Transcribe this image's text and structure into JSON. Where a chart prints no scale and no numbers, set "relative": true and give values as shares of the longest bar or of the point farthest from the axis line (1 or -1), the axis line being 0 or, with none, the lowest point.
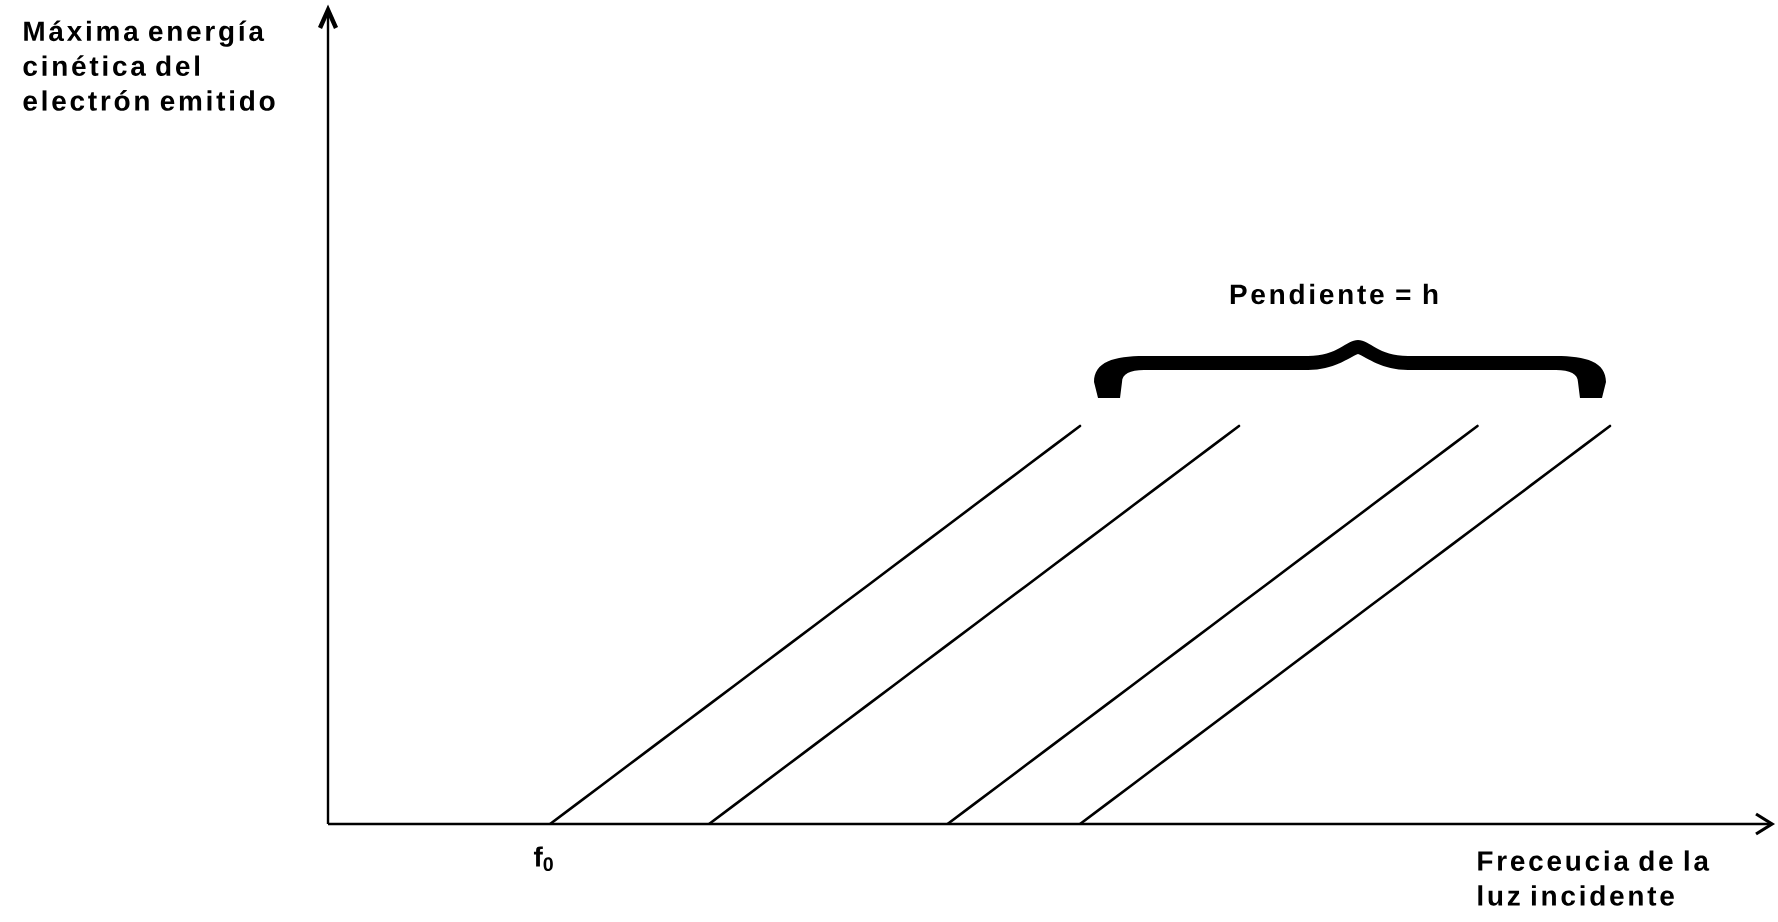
{
  "chart_data": {
    "type": "line",
    "relative": true,
    "marker": "none",
    "line_style": "solid",
    "xlabel": "Freceucia de la luz incidente",
    "annotations": [
      "Máxima energía cinética del electrón emitido",
      "Pendiente = h",
      {
        "text": "f$_{0}$",
        "y": 0
      }
    ],
    "categories": [
      null,
      null,
      null,
      null,
      null,
      null,
      null,
      null,
      null,
      null,
      null,
      null,
      null,
      null,
      null,
      null,
      null,
      null,
      null,
      null,
      null,
      null,
      null,
      null,
      null,
      null,
      null,
      null,
      null,
      null,
      null,
      null,
      null,
      null,
      null,
      null,
      null,
      null,
      null,
      null,
      null
    ],
    "series": [
      {
        "color": "#000000",
        "values": [
          0,
          0.05,
          0.1,
          0.15,
          0.2,
          0.25,
          0.3,
          0.35,
          0.4,
          0.45,
          0.5,
          0.55,
          0.6,
          0.65,
          0.7,
          0.75,
          0.8,
          0.85,
          0.9,
          0.95,
          1,
          null,
          null,
          null,
          null,
          null,
          null,
          null,
          null,
          null,
          null,
          null,
          null,
          null,
          null,
          null,
          null,
          null,
          null,
          null,
          null
        ]
      },
      {
        "color": "#000000",
        "values": [
          null,
          null,
          null,
          null,
          null,
          null,
          0,
          0.05,
          0.1,
          0.15,
          0.2,
          0.25,
          0.3,
          0.35,
          0.4,
          0.45,
          0.5,
          0.55,
          0.6,
          0.65,
          0.7,
          0.75,
          0.8,
          0.85,
          0.9,
          0.95,
          1,
          null,
          null,
          null,
          null,
          null,
          null,
          null,
          null,
          null,
          null,
          null,
          null,
          null,
          null
        ]
      },
      {
        "color": "#000000",
        "values": [
          null,
          null,
          null,
          null,
          null,
          null,
          null,
          null,
          null,
          null,
          null,
          null,
          null,
          null,
          null,
          0,
          0.05,
          0.1,
          0.15,
          0.2,
          0.25,
          0.3,
          0.35,
          0.4,
          0.45,
          0.5,
          0.55,
          0.6,
          0.65,
          0.7,
          0.75,
          0.8,
          0.85,
          0.9,
          0.95,
          1,
          null,
          null,
          null,
          null,
          null
        ]
      },
      {
        "color": "#000000",
        "values": [
          null,
          null,
          null,
          null,
          null,
          null,
          null,
          null,
          null,
          null,
          null,
          null,
          null,
          null,
          null,
          null,
          null,
          null,
          null,
          null,
          0,
          0.05,
          0.1,
          0.15,
          0.2,
          0.25,
          0.3,
          0.35,
          0.4,
          0.45,
          0.5,
          0.55,
          0.6,
          0.65,
          0.7,
          0.75,
          0.8,
          0.85,
          0.9,
          0.95,
          1
        ]
      }
    ]
  }
}
